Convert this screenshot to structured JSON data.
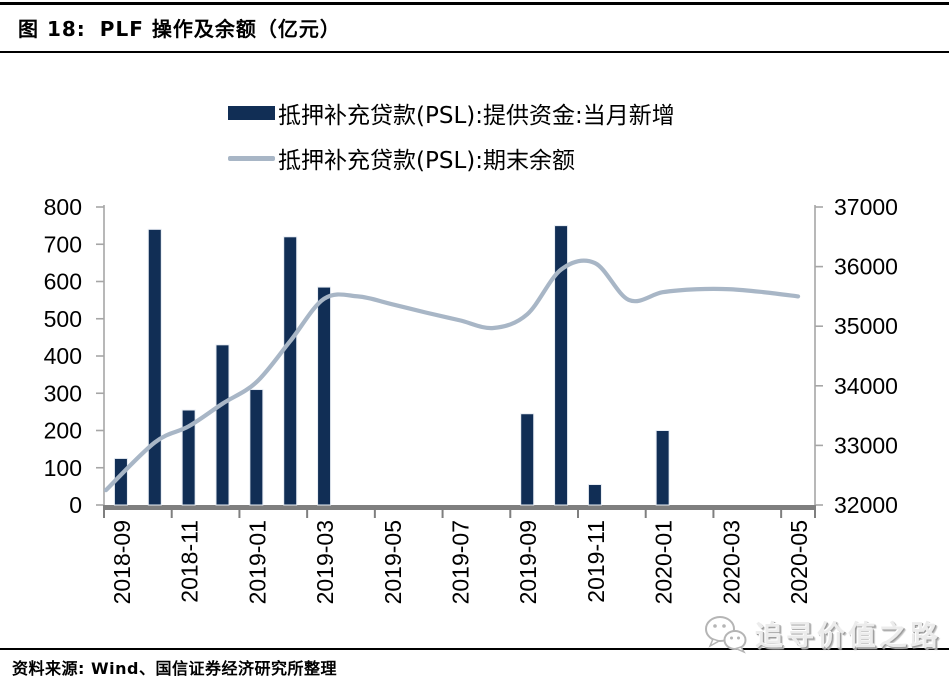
{
  "header": {
    "figure_label": "图 18:",
    "title": "PLF 操作及余额（亿元）"
  },
  "chart_data": {
    "type": "bar",
    "title": "PLF 操作及余额（亿元）",
    "grid": false,
    "legend_position": "top",
    "categories": [
      "2018-09",
      "2018-10",
      "2018-11",
      "2018-12",
      "2019-01",
      "2019-02",
      "2019-03",
      "2019-04",
      "2019-05",
      "2019-06",
      "2019-07",
      "2019-08",
      "2019-09",
      "2019-10",
      "2019-11",
      "2019-12",
      "2020-01",
      "2020-02",
      "2020-03",
      "2020-04",
      "2020-05"
    ],
    "x_tick_labels": [
      "2018-09",
      "2018-11",
      "2019-01",
      "2019-03",
      "2019-05",
      "2019-07",
      "2019-09",
      "2019-11",
      "2020-01",
      "2020-03",
      "2020-05"
    ],
    "series": [
      {
        "name": "抵押补充贷款(PSL):提供资金:当月新增",
        "type": "bar",
        "axis": "left",
        "color": "#112E55",
        "edge_color": "#E8EDF4",
        "values": [
          125,
          740,
          255,
          430,
          310,
          720,
          585,
          0,
          0,
          0,
          0,
          0,
          245,
          750,
          55,
          0,
          200,
          0,
          0,
          0,
          0
        ]
      },
      {
        "name": "抵押补充贷款(PSL):期末余额",
        "type": "line",
        "axis": "right",
        "color": "#A8B6C6",
        "values": [
          32250,
          33050,
          33320,
          33700,
          34060,
          34750,
          35460,
          35500,
          35370,
          35230,
          35100,
          34970,
          35200,
          35950,
          36060,
          35440,
          35570,
          35620,
          35620,
          35570,
          35500
        ]
      }
    ],
    "left_axis": {
      "min": 0,
      "max": 800,
      "ticks": [
        0,
        100,
        200,
        300,
        400,
        500,
        600,
        700,
        800
      ]
    },
    "right_axis": {
      "min": 32000,
      "max": 37000,
      "ticks": [
        32000,
        33000,
        34000,
        35000,
        36000,
        37000
      ]
    }
  },
  "colors": {
    "baseline": "#7F7F7F",
    "axis_line": "#A6A6A6",
    "tick": "#7F7F7F",
    "label_text": "#000000"
  },
  "footer": {
    "source": "资料来源: Wind、国信证券经济研究所整理",
    "watermark": "追寻价值之路",
    "watermark_icon": "wechat-icon"
  }
}
